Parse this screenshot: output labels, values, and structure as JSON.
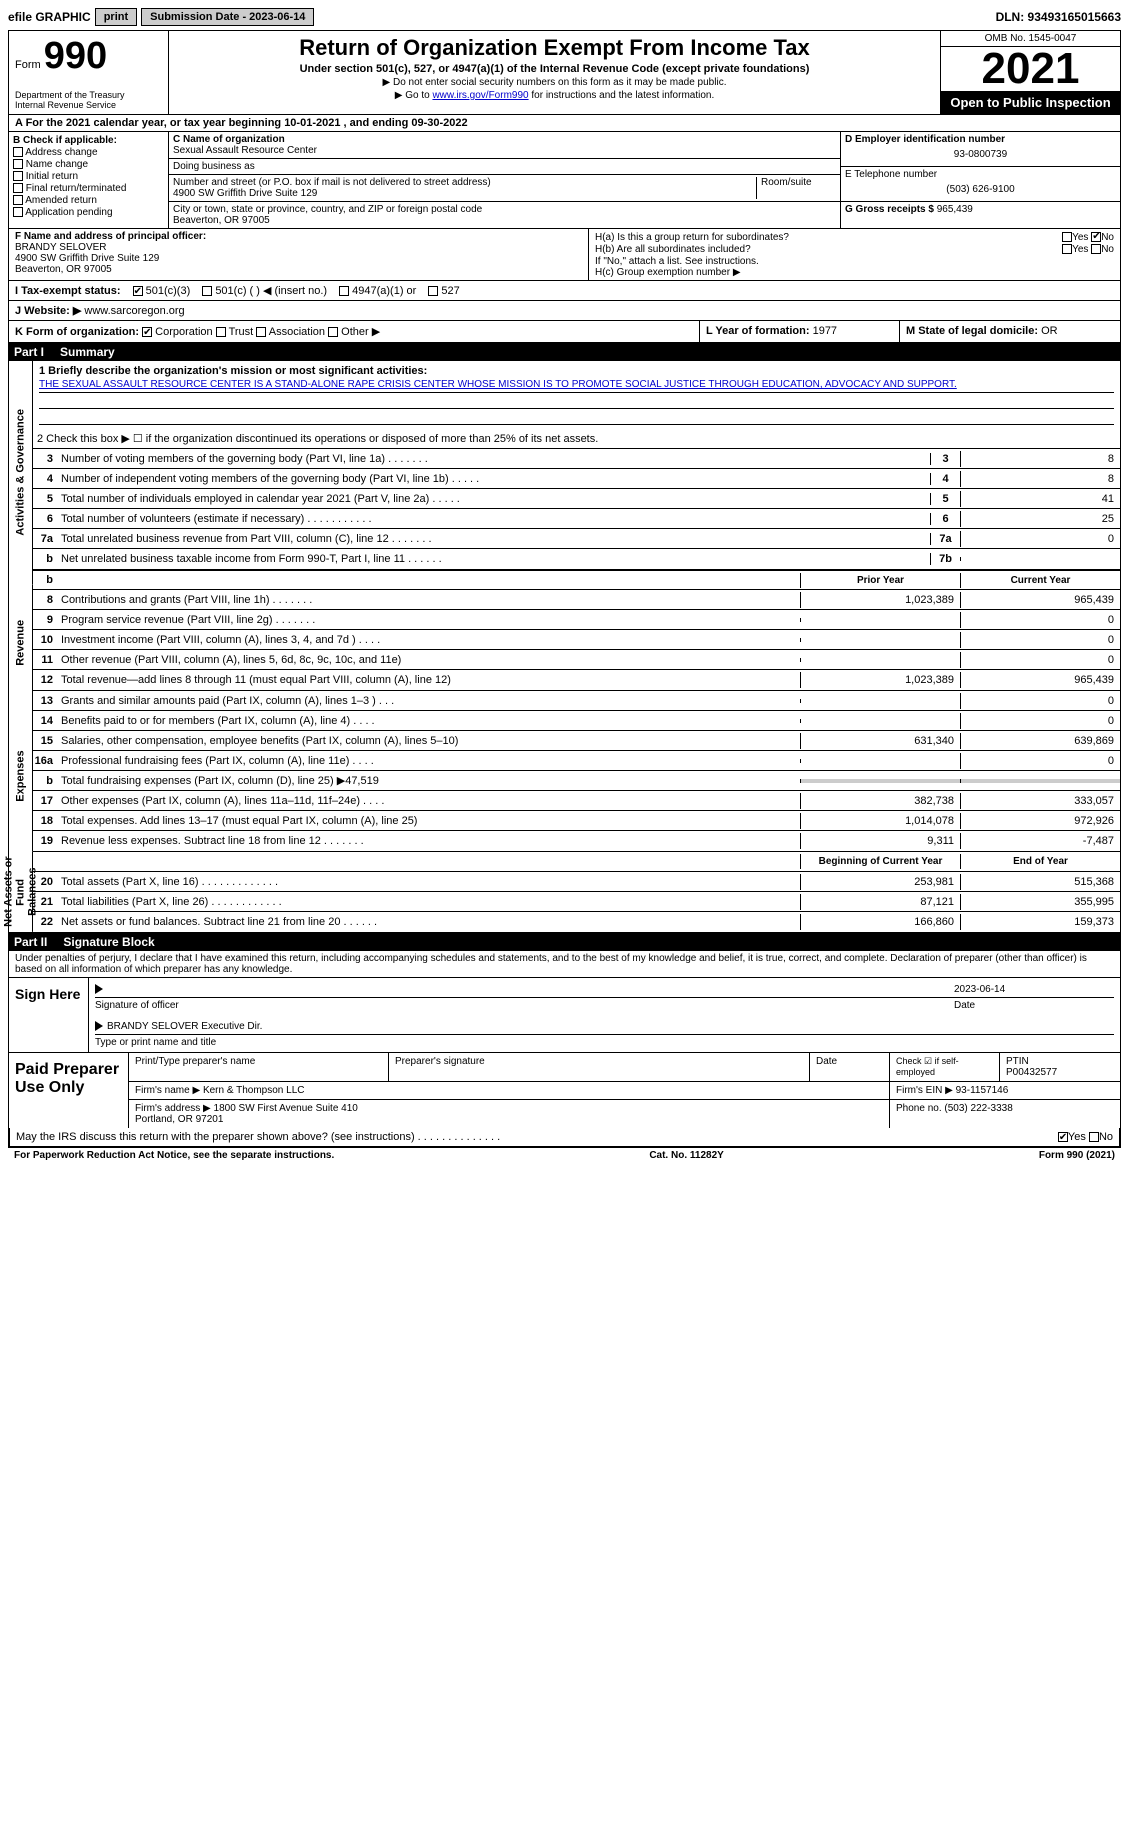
{
  "topbar": {
    "efile": "efile GRAPHIC",
    "print": "print",
    "submission": "Submission Date - 2023-06-14",
    "dln": "DLN: 93493165015663"
  },
  "header": {
    "form_prefix": "Form",
    "form_num": "990",
    "dept": "Department of the Treasury\nInternal Revenue Service",
    "title": "Return of Organization Exempt From Income Tax",
    "sub": "Under section 501(c), 527, or 4947(a)(1) of the Internal Revenue Code (except private foundations)",
    "note1": "▶ Do not enter social security numbers on this form as it may be made public.",
    "note2_pre": "▶ Go to ",
    "note2_link": "www.irs.gov/Form990",
    "note2_post": " for instructions and the latest information.",
    "omb": "OMB No. 1545-0047",
    "year": "2021",
    "open": "Open to Public Inspection"
  },
  "row_a": "A For the 2021 calendar year, or tax year beginning 10-01-2021    , and ending 09-30-2022",
  "col_b": {
    "label": "B Check if applicable:",
    "items": [
      "Address change",
      "Name change",
      "Initial return",
      "Final return/terminated",
      "Amended return",
      "Application pending"
    ]
  },
  "col_c": {
    "name_label": "C Name of organization",
    "name": "Sexual Assault Resource Center",
    "dba_label": "Doing business as",
    "dba": "",
    "addr_label": "Number and street (or P.O. box if mail is not delivered to street address)",
    "addr": "4900 SW Griffith Drive Suite 129",
    "room_label": "Room/suite",
    "city_label": "City or town, state or province, country, and ZIP or foreign postal code",
    "city": "Beaverton, OR  97005"
  },
  "col_d": {
    "ein_label": "D Employer identification number",
    "ein": "93-0800739",
    "tel_label": "E Telephone number",
    "tel": "(503) 626-9100",
    "gross_label": "G Gross receipts $",
    "gross": "965,439"
  },
  "row_f": {
    "label": "F Name and address of principal officer:",
    "name": "BRANDY SELOVER",
    "addr1": "4900 SW Griffith Drive Suite 129",
    "addr2": "Beaverton, OR  97005"
  },
  "row_h": {
    "ha": "H(a)  Is this a group return for subordinates?",
    "ha_no": "No",
    "hb": "H(b)  Are all subordinates included?",
    "hb_note": "If \"No,\" attach a list. See instructions.",
    "hc": "H(c)  Group exemption number ▶"
  },
  "row_i": {
    "label": "I  Tax-exempt status:",
    "opt1": "501(c)(3)",
    "opt2": "501(c) (  ) ◀ (insert no.)",
    "opt3": "4947(a)(1) or",
    "opt4": "527"
  },
  "row_j": {
    "label": "J  Website: ▶",
    "val": "www.sarcoregon.org"
  },
  "row_k": {
    "label": "K Form of organization:",
    "corp": "Corporation",
    "trust": "Trust",
    "assoc": "Association",
    "other": "Other ▶"
  },
  "row_l": {
    "label": "L Year of formation:",
    "val": "1977"
  },
  "row_m": {
    "label": "M State of legal domicile:",
    "val": "OR"
  },
  "part1": {
    "title": "Part I",
    "name": "Summary",
    "line1_label": "1  Briefly describe the organization's mission or most significant activities:",
    "mission": "THE SEXUAL ASSAULT RESOURCE CENTER IS A STAND-ALONE RAPE CRISIS CENTER WHOSE MISSION IS TO PROMOTE SOCIAL JUSTICE THROUGH EDUCATION, ADVOCACY AND SUPPORT.",
    "line2": "2  Check this box ▶ ☐ if the organization discontinued its operations or disposed of more than 25% of its net assets.",
    "sect_activities": "Activities & Governance",
    "sect_revenue": "Revenue",
    "sect_expenses": "Expenses",
    "sect_net": "Net Assets or Fund Balances",
    "col_prior": "Prior Year",
    "col_current": "Current Year",
    "col_begin": "Beginning of Current Year",
    "col_end": "End of Year",
    "lines_gov": [
      {
        "n": "3",
        "d": "Number of voting members of the governing body (Part VI, line 1a)  .  .  .  .  .  .  .",
        "lbl": "3",
        "v": "8"
      },
      {
        "n": "4",
        "d": "Number of independent voting members of the governing body (Part VI, line 1b)  .  .  .  .  .",
        "lbl": "4",
        "v": "8"
      },
      {
        "n": "5",
        "d": "Total number of individuals employed in calendar year 2021 (Part V, line 2a)  .  .  .  .  .",
        "lbl": "5",
        "v": "41"
      },
      {
        "n": "6",
        "d": "Total number of volunteers (estimate if necessary)  .  .  .  .  .  .  .  .  .  .  .",
        "lbl": "6",
        "v": "25"
      },
      {
        "n": "7a",
        "d": "Total unrelated business revenue from Part VIII, column (C), line 12  .  .  .  .  .  .  .",
        "lbl": "7a",
        "v": "0"
      },
      {
        "n": "b",
        "d": "Net unrelated business taxable income from Form 990-T, Part I, line 11  .  .  .  .  .  .",
        "lbl": "7b",
        "v": ""
      }
    ],
    "lines_rev": [
      {
        "n": "8",
        "d": "Contributions and grants (Part VIII, line 1h)  .  .  .  .  .  .  .",
        "p": "1,023,389",
        "c": "965,439"
      },
      {
        "n": "9",
        "d": "Program service revenue (Part VIII, line 2g)  .  .  .  .  .  .  .",
        "p": "",
        "c": "0"
      },
      {
        "n": "10",
        "d": "Investment income (Part VIII, column (A), lines 3, 4, and 7d )  .  .  .  .",
        "p": "",
        "c": "0"
      },
      {
        "n": "11",
        "d": "Other revenue (Part VIII, column (A), lines 5, 6d, 8c, 9c, 10c, and 11e)",
        "p": "",
        "c": "0"
      },
      {
        "n": "12",
        "d": "Total revenue—add lines 8 through 11 (must equal Part VIII, column (A), line 12)",
        "p": "1,023,389",
        "c": "965,439"
      }
    ],
    "lines_exp": [
      {
        "n": "13",
        "d": "Grants and similar amounts paid (Part IX, column (A), lines 1–3 )  .  .  .",
        "p": "",
        "c": "0"
      },
      {
        "n": "14",
        "d": "Benefits paid to or for members (Part IX, column (A), line 4)  .  .  .  .",
        "p": "",
        "c": "0"
      },
      {
        "n": "15",
        "d": "Salaries, other compensation, employee benefits (Part IX, column (A), lines 5–10)",
        "p": "631,340",
        "c": "639,869"
      },
      {
        "n": "16a",
        "d": "Professional fundraising fees (Part IX, column (A), line 11e)  .  .  .  .",
        "p": "",
        "c": "0"
      },
      {
        "n": "b",
        "d": "Total fundraising expenses (Part IX, column (D), line 25) ▶47,519",
        "p": "grey",
        "c": "grey"
      },
      {
        "n": "17",
        "d": "Other expenses (Part IX, column (A), lines 11a–11d, 11f–24e)  .  .  .  .",
        "p": "382,738",
        "c": "333,057"
      },
      {
        "n": "18",
        "d": "Total expenses. Add lines 13–17 (must equal Part IX, column (A), line 25)",
        "p": "1,014,078",
        "c": "972,926"
      },
      {
        "n": "19",
        "d": "Revenue less expenses. Subtract line 18 from line 12  .  .  .  .  .  .  .",
        "p": "9,311",
        "c": "-7,487"
      }
    ],
    "lines_net": [
      {
        "n": "20",
        "d": "Total assets (Part X, line 16)  .  .  .  .  .  .  .  .  .  .  .  .  .",
        "p": "253,981",
        "c": "515,368"
      },
      {
        "n": "21",
        "d": "Total liabilities (Part X, line 26)  .  .  .  .  .  .  .  .  .  .  .  .",
        "p": "87,121",
        "c": "355,995"
      },
      {
        "n": "22",
        "d": "Net assets or fund balances. Subtract line 21 from line 20  .  .  .  .  .  .",
        "p": "166,860",
        "c": "159,373"
      }
    ]
  },
  "part2": {
    "title": "Part II",
    "name": "Signature Block",
    "decl": "Under penalties of perjury, I declare that I have examined this return, including accompanying schedules and statements, and to the best of my knowledge and belief, it is true, correct, and complete. Declaration of preparer (other than officer) is based on all information of which preparer has any knowledge.",
    "sign_here": "Sign Here",
    "sig_officer": "Signature of officer",
    "sig_date": "2023-06-14",
    "date_label": "Date",
    "officer_name": "BRANDY SELOVER Executive Dir.",
    "type_name": "Type or print name and title",
    "paid_prep": "Paid Preparer Use Only",
    "prep_name_label": "Print/Type preparer's name",
    "prep_name": "",
    "prep_sig_label": "Preparer's signature",
    "prep_date_label": "Date",
    "prep_check": "Check ☑ if self-employed",
    "ptin_label": "PTIN",
    "ptin": "P00432577",
    "firm_name_label": "Firm's name    ▶",
    "firm_name": "Kern & Thompson LLC",
    "firm_ein_label": "Firm's EIN ▶",
    "firm_ein": "93-1157146",
    "firm_addr_label": "Firm's address ▶",
    "firm_addr": "1800 SW First Avenue Suite 410\nPortland, OR  97201",
    "firm_phone_label": "Phone no.",
    "firm_phone": "(503) 222-3338",
    "discuss": "May the IRS discuss this return with the preparer shown above? (see instructions)  .  .  .  .  .  .  .  .  .  .  .  .  .  .",
    "yes": "Yes",
    "no": "No"
  },
  "footer": {
    "left": "For Paperwork Reduction Act Notice, see the separate instructions.",
    "mid": "Cat. No. 11282Y",
    "right": "Form 990 (2021)"
  },
  "colors": {
    "bg": "#ffffff",
    "black": "#000000",
    "grey": "#cccccc",
    "link": "#0000cc"
  }
}
